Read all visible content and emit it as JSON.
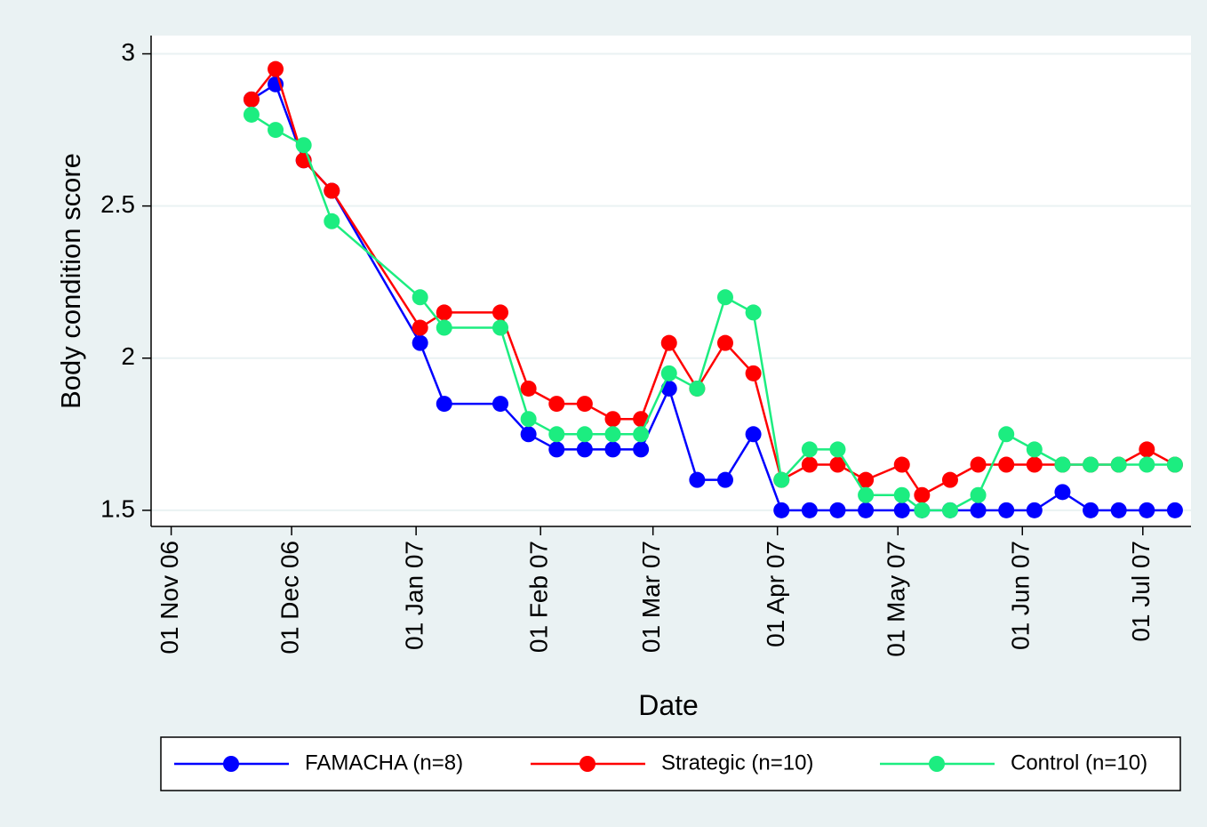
{
  "chart_data": {
    "type": "line",
    "x_label": "Date",
    "y_label": "Body condition score",
    "x": [
      "2006-11-21",
      "2006-11-27",
      "2006-12-04",
      "2006-12-11",
      "2007-01-02",
      "2007-01-08",
      "2007-01-22",
      "2007-01-29",
      "2007-02-05",
      "2007-02-12",
      "2007-02-19",
      "2007-02-26",
      "2007-03-05",
      "2007-03-12",
      "2007-03-19",
      "2007-03-26",
      "2007-04-02",
      "2007-04-09",
      "2007-04-16",
      "2007-04-23",
      "2007-05-02",
      "2007-05-07",
      "2007-05-14",
      "2007-05-21",
      "2007-05-28",
      "2007-06-04",
      "2007-06-11",
      "2007-06-18",
      "2007-06-25",
      "2007-07-02",
      "2007-07-09"
    ],
    "series": [
      {
        "name": "FAMACHA (n=8)",
        "color": "#0000ff",
        "values": [
          2.85,
          2.9,
          2.65,
          2.55,
          2.05,
          1.85,
          1.85,
          1.75,
          1.7,
          1.7,
          1.7,
          1.7,
          1.9,
          1.6,
          1.6,
          1.75,
          1.5,
          1.5,
          1.5,
          1.5,
          1.5,
          1.5,
          1.5,
          1.5,
          1.5,
          1.5,
          1.56,
          1.5,
          1.5,
          1.5,
          1.5
        ]
      },
      {
        "name": "Strategic (n=10)",
        "color": "#ff0000",
        "values": [
          2.85,
          2.95,
          2.65,
          2.55,
          2.1,
          2.15,
          2.15,
          1.9,
          1.85,
          1.85,
          1.8,
          1.8,
          2.05,
          1.9,
          2.05,
          1.95,
          1.6,
          1.65,
          1.65,
          1.6,
          1.65,
          1.55,
          1.6,
          1.65,
          1.65,
          1.65,
          1.65,
          1.65,
          1.65,
          1.7,
          1.65
        ]
      },
      {
        "name": "Control (n=10)",
        "color": "#1ced80",
        "values": [
          2.8,
          2.75,
          2.7,
          2.45,
          2.2,
          2.1,
          2.1,
          1.8,
          1.75,
          1.75,
          1.75,
          1.75,
          1.95,
          1.9,
          2.2,
          2.15,
          1.6,
          1.7,
          1.7,
          1.55,
          1.55,
          1.5,
          1.5,
          1.55,
          1.75,
          1.7,
          1.65,
          1.65,
          1.65,
          1.65,
          1.65
        ]
      }
    ],
    "xlim": [
      "2006-10-27",
      "2007-07-13"
    ],
    "xticks": [
      {
        "value": "2006-11-01",
        "label": "01 Nov 06"
      },
      {
        "value": "2006-12-01",
        "label": "01 Dec 06"
      },
      {
        "value": "2007-01-01",
        "label": "01 Jan 07"
      },
      {
        "value": "2007-02-01",
        "label": "01 Feb 07"
      },
      {
        "value": "2007-03-01",
        "label": "01 Mar 07"
      },
      {
        "value": "2007-04-01",
        "label": "01 Apr 07"
      },
      {
        "value": "2007-05-01",
        "label": "01 May 07"
      },
      {
        "value": "2007-06-01",
        "label": "01 Jun 07"
      },
      {
        "value": "2007-07-01",
        "label": "01 Jul 07"
      }
    ],
    "ylim": [
      1.447,
      3.06
    ],
    "yticks": [
      1.5,
      2,
      2.5,
      3
    ],
    "grid": true,
    "legend": "bottom"
  }
}
